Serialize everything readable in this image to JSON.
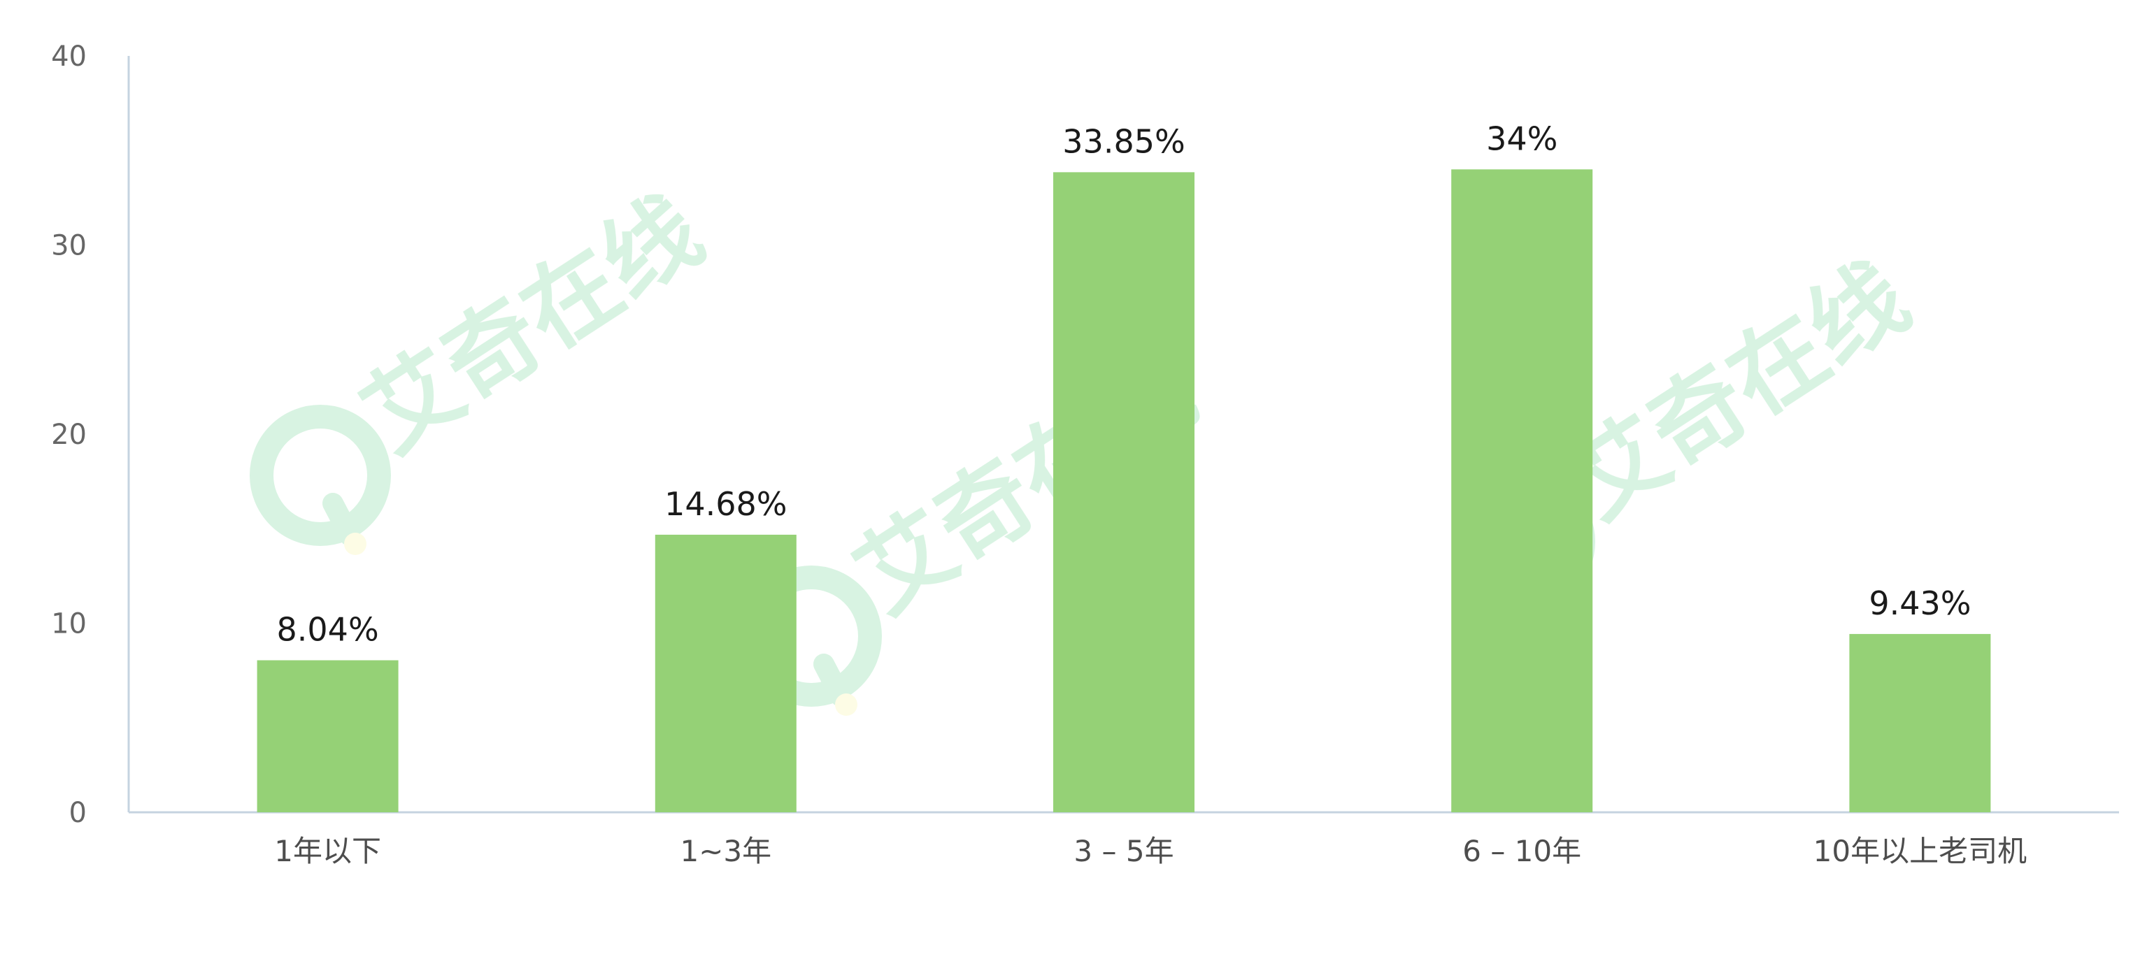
{
  "chart_data": {
    "type": "bar",
    "title": "",
    "xlabel": "",
    "ylabel": "",
    "categories": [
      "1年以下",
      "1~3年",
      "3 – 5年",
      "6 – 10年",
      "10年以上老司机"
    ],
    "values": [
      8.04,
      14.68,
      33.85,
      34,
      9.43
    ],
    "value_labels": [
      "8.04%",
      "14.68%",
      "33.85%",
      "34%",
      "9.43%"
    ],
    "ylim": [
      0,
      40
    ],
    "yticks": [
      0,
      10,
      20,
      30,
      40
    ],
    "ytick_labels": [
      "0",
      "10",
      "20",
      "30",
      "40"
    ],
    "grid": false,
    "legend": "none",
    "colors": {
      "bar": "#95d176",
      "axis": "#c5d3e0",
      "tick_label": "#666666",
      "value_label": "#1a1a1a",
      "watermark": "#4ec77a"
    }
  },
  "watermark": {
    "text": "艾奇在线",
    "icon": "q-logo-icon"
  }
}
